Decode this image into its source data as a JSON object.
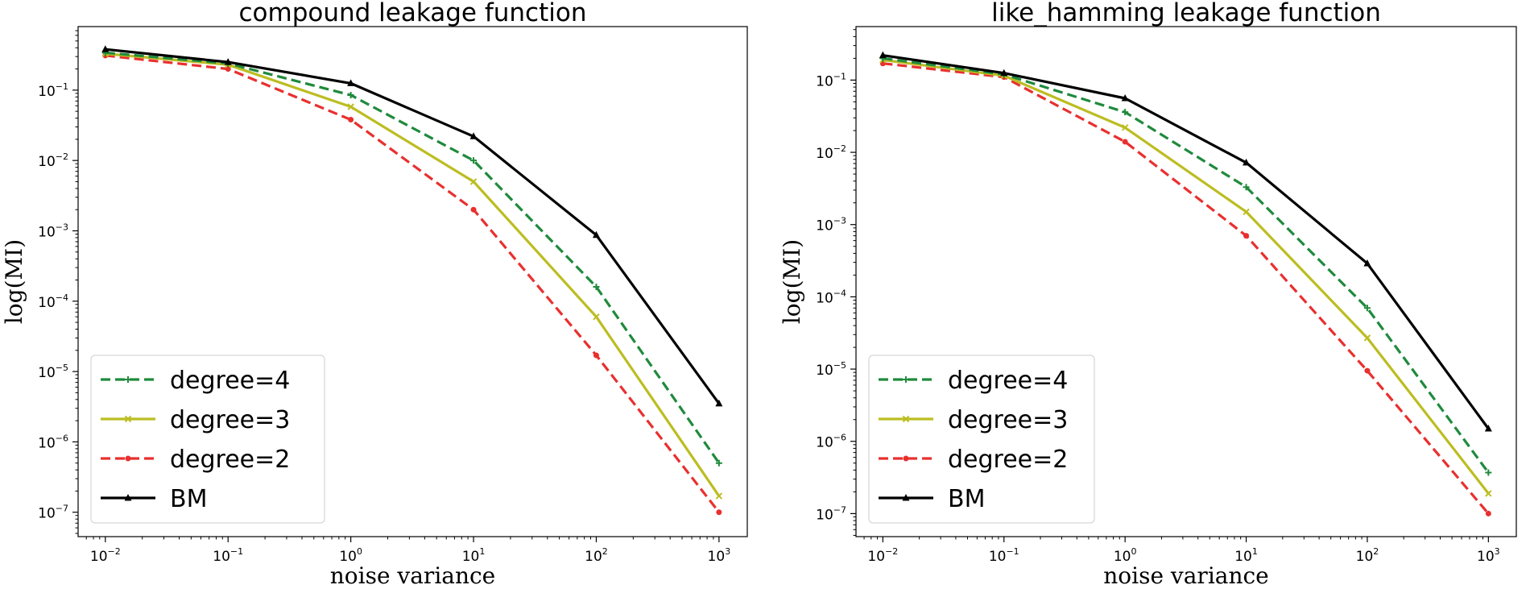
{
  "chart_data": [
    {
      "type": "line",
      "title": "compound leakage function",
      "xlabel": "noise variance",
      "ylabel": "log(MI)",
      "xscale": "log",
      "yscale": "log",
      "xlim": [
        0.006,
        1700
      ],
      "ylim": [
        4.5e-08,
        0.8
      ],
      "x": [
        0.01,
        0.1,
        1,
        10,
        100,
        1000
      ],
      "xticks": [
        {
          "value": 0.01,
          "base": "10",
          "exp": "−2"
        },
        {
          "value": 0.1,
          "base": "10",
          "exp": "−1"
        },
        {
          "value": 1,
          "base": "10",
          "exp": "0"
        },
        {
          "value": 10,
          "base": "10",
          "exp": "1"
        },
        {
          "value": 100,
          "base": "10",
          "exp": "2"
        },
        {
          "value": 1000,
          "base": "10",
          "exp": "3"
        }
      ],
      "yticks": [
        {
          "value": 1e-07,
          "base": "10",
          "exp": "−7"
        },
        {
          "value": 1e-06,
          "base": "10",
          "exp": "−6"
        },
        {
          "value": 1e-05,
          "base": "10",
          "exp": "−5"
        },
        {
          "value": 0.0001,
          "base": "10",
          "exp": "−4"
        },
        {
          "value": 0.001,
          "base": "10",
          "exp": "−3"
        },
        {
          "value": 0.01,
          "base": "10",
          "exp": "−2"
        },
        {
          "value": 0.1,
          "base": "10",
          "exp": "−1"
        }
      ],
      "legend_position": "lower-left",
      "series": [
        {
          "name": "degree=4",
          "color": "#1f8a3c",
          "style": "dashed",
          "marker": "plus",
          "values": [
            0.34,
            0.24,
            0.085,
            0.01,
            0.00016,
            5e-07
          ]
        },
        {
          "name": "degree=3",
          "color": "#bcbd22",
          "style": "solid",
          "marker": "x",
          "values": [
            0.33,
            0.23,
            0.058,
            0.005,
            6e-05,
            1.7e-07
          ]
        },
        {
          "name": "degree=2",
          "color": "#e8302f",
          "style": "dashed",
          "marker": "dot",
          "values": [
            0.31,
            0.2,
            0.038,
            0.002,
            1.7e-05,
            1e-07
          ]
        },
        {
          "name": "BM",
          "color": "#000000",
          "style": "solid",
          "marker": "triangle",
          "values": [
            0.38,
            0.25,
            0.125,
            0.022,
            0.00087,
            3.5e-06
          ]
        }
      ]
    },
    {
      "type": "line",
      "title": "like_hamming leakage function",
      "xlabel": "noise variance",
      "ylabel": "log(MI)",
      "xscale": "log",
      "yscale": "log",
      "xlim": [
        0.006,
        1700
      ],
      "ylim": [
        4.8e-08,
        0.55
      ],
      "x": [
        0.01,
        0.1,
        1,
        10,
        100,
        1000
      ],
      "xticks": [
        {
          "value": 0.01,
          "base": "10",
          "exp": "−2"
        },
        {
          "value": 0.1,
          "base": "10",
          "exp": "−1"
        },
        {
          "value": 1,
          "base": "10",
          "exp": "0"
        },
        {
          "value": 10,
          "base": "10",
          "exp": "1"
        },
        {
          "value": 100,
          "base": "10",
          "exp": "2"
        },
        {
          "value": 1000,
          "base": "10",
          "exp": "3"
        }
      ],
      "yticks": [
        {
          "value": 1e-07,
          "base": "10",
          "exp": "−7"
        },
        {
          "value": 1e-06,
          "base": "10",
          "exp": "−6"
        },
        {
          "value": 1e-05,
          "base": "10",
          "exp": "−5"
        },
        {
          "value": 0.0001,
          "base": "10",
          "exp": "−4"
        },
        {
          "value": 0.001,
          "base": "10",
          "exp": "−3"
        },
        {
          "value": 0.01,
          "base": "10",
          "exp": "−2"
        },
        {
          "value": 0.1,
          "base": "10",
          "exp": "−1"
        }
      ],
      "legend_position": "lower-left",
      "series": [
        {
          "name": "degree=4",
          "color": "#1f8a3c",
          "style": "dashed",
          "marker": "plus",
          "values": [
            0.2,
            0.12,
            0.036,
            0.0033,
            7e-05,
            3.7e-07
          ]
        },
        {
          "name": "degree=3",
          "color": "#bcbd22",
          "style": "solid",
          "marker": "x",
          "values": [
            0.19,
            0.115,
            0.022,
            0.0015,
            2.7e-05,
            1.9e-07
          ]
        },
        {
          "name": "degree=2",
          "color": "#e8302f",
          "style": "dashed",
          "marker": "dot",
          "values": [
            0.17,
            0.11,
            0.014,
            0.0007,
            9.5e-06,
            1e-07
          ]
        },
        {
          "name": "BM",
          "color": "#000000",
          "style": "solid",
          "marker": "triangle",
          "values": [
            0.22,
            0.125,
            0.056,
            0.0072,
            0.00029,
            1.5e-06
          ]
        }
      ]
    }
  ]
}
